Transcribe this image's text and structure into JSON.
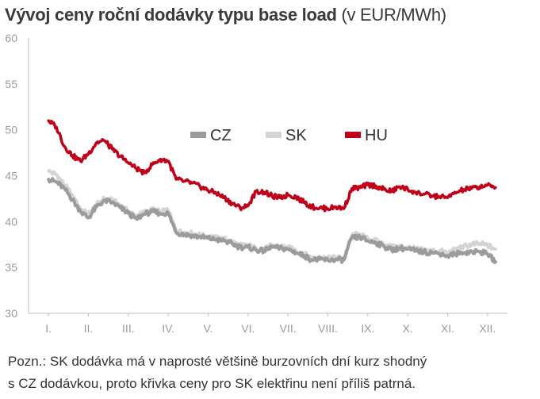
{
  "title": {
    "main": "Vývoj ceny roční dodávky typu base load",
    "unit": "(v EUR/MWh)"
  },
  "note": {
    "line1": "Pozn.: SK dodávka má v naprosté většině burzovních dní kurz shodný",
    "line2": "s CZ dodávkou, proto křivka ceny pro SK elektřinu není příliš patrná."
  },
  "colors": {
    "CZ": "#9b9b9b",
    "SK": "#d4d4d4",
    "HU": "#c00018",
    "axis": "#bdbdbd",
    "text": "#9a9a9a"
  },
  "chart_data": {
    "type": "line",
    "title": "Vývoj ceny roční dodávky typu base load (v EUR/MWh)",
    "xlabel": "",
    "ylabel": "",
    "ylim": [
      30,
      60
    ],
    "yticks": [
      30,
      35,
      40,
      45,
      50,
      55,
      60
    ],
    "categories": [
      "I.",
      "II.",
      "III.",
      "IV.",
      "V.",
      "VI.",
      "VII.",
      "VIII.",
      "IX.",
      "X.",
      "XI.",
      "XII."
    ],
    "grid": false,
    "legend": "inside-top",
    "x": [
      0.0,
      0.2,
      0.4,
      0.6,
      0.8,
      1.0,
      1.2,
      1.4,
      1.6,
      1.8,
      2.0,
      2.2,
      2.4,
      2.6,
      2.8,
      3.0,
      3.2,
      3.4,
      3.6,
      3.8,
      4.0,
      4.2,
      4.4,
      4.6,
      4.8,
      5.0,
      5.2,
      5.4,
      5.6,
      5.8,
      6.0,
      6.2,
      6.4,
      6.6,
      6.8,
      7.0,
      7.2,
      7.4,
      7.6,
      7.8,
      8.0,
      8.2,
      8.4,
      8.6,
      8.8,
      9.0,
      9.2,
      9.4,
      9.6,
      9.8,
      10.0,
      10.2,
      10.4,
      10.6,
      10.8,
      11.0,
      11.2
    ],
    "series": [
      {
        "name": "CZ",
        "values": [
          44.6,
          44.3,
          43.6,
          42.4,
          41.1,
          40.4,
          41.6,
          42.3,
          42.1,
          41.5,
          40.9,
          40.3,
          40.8,
          41.1,
          40.9,
          40.9,
          38.8,
          38.6,
          38.5,
          38.3,
          38.2,
          38.0,
          37.9,
          37.6,
          37.2,
          37.2,
          36.9,
          36.8,
          37.2,
          37.1,
          37.0,
          36.6,
          36.3,
          35.8,
          35.9,
          35.8,
          35.9,
          35.8,
          38.2,
          38.3,
          37.9,
          37.7,
          37.3,
          36.9,
          37.1,
          37.0,
          36.8,
          36.7,
          36.6,
          36.5,
          36.3,
          36.5,
          36.6,
          36.7,
          36.7,
          36.5,
          35.6
        ]
      },
      {
        "name": "SK",
        "values": [
          45.5,
          45.1,
          44.0,
          42.8,
          41.4,
          40.8,
          41.8,
          42.5,
          42.3,
          41.8,
          41.1,
          40.6,
          41.0,
          41.3,
          41.1,
          41.2,
          39.0,
          38.8,
          38.7,
          38.5,
          38.4,
          38.2,
          38.1,
          37.8,
          37.4,
          37.4,
          37.1,
          37.0,
          37.4,
          37.3,
          37.2,
          36.8,
          36.5,
          36.0,
          36.1,
          36.0,
          36.1,
          36.0,
          38.5,
          38.6,
          38.1,
          37.9,
          37.5,
          37.2,
          37.3,
          37.2,
          37.0,
          36.9,
          36.8,
          36.8,
          36.6,
          36.9,
          37.3,
          37.5,
          37.6,
          37.4,
          37.0
        ]
      },
      {
        "name": "HU",
        "values": [
          51.0,
          50.3,
          48.2,
          47.2,
          46.6,
          47.4,
          48.6,
          48.8,
          47.9,
          47.1,
          46.4,
          45.8,
          45.3,
          46.2,
          46.8,
          46.6,
          44.6,
          44.4,
          44.2,
          43.8,
          43.4,
          43.1,
          42.6,
          42.0,
          41.5,
          41.7,
          43.3,
          43.2,
          42.8,
          42.6,
          42.9,
          42.7,
          42.1,
          41.6,
          41.5,
          41.4,
          41.6,
          41.4,
          43.6,
          43.7,
          44.0,
          43.9,
          43.5,
          43.3,
          43.8,
          43.5,
          43.2,
          43.0,
          42.8,
          42.7,
          42.6,
          43.1,
          43.5,
          43.6,
          43.8,
          44.0,
          43.7
        ]
      }
    ]
  }
}
